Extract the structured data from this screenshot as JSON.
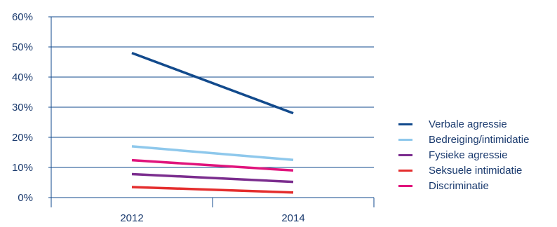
{
  "chart_data": {
    "type": "line",
    "title": "",
    "xlabel": "",
    "ylabel": "",
    "x": [
      "2012",
      "2014"
    ],
    "ylim": [
      0,
      60
    ],
    "yticks": [
      "0%",
      "10%",
      "20%",
      "30%",
      "40%",
      "50%",
      "60%"
    ],
    "grid": "horizontal",
    "legend_position": "right",
    "series": [
      {
        "name": "Verbale agressie",
        "color": "#124a8c",
        "values": [
          48,
          28
        ]
      },
      {
        "name": "Bedreiging/intimidatie",
        "color": "#8ec8ec",
        "values": [
          17,
          12.5
        ]
      },
      {
        "name": "Fysieke agressie",
        "color": "#7b2d8e",
        "values": [
          7.8,
          5.2
        ]
      },
      {
        "name": "Seksuele intimidatie",
        "color": "#e42d2d",
        "values": [
          3.5,
          1.7
        ]
      },
      {
        "name": "Discriminatie",
        "color": "#e0147c",
        "values": [
          12.4,
          9
        ]
      }
    ]
  }
}
